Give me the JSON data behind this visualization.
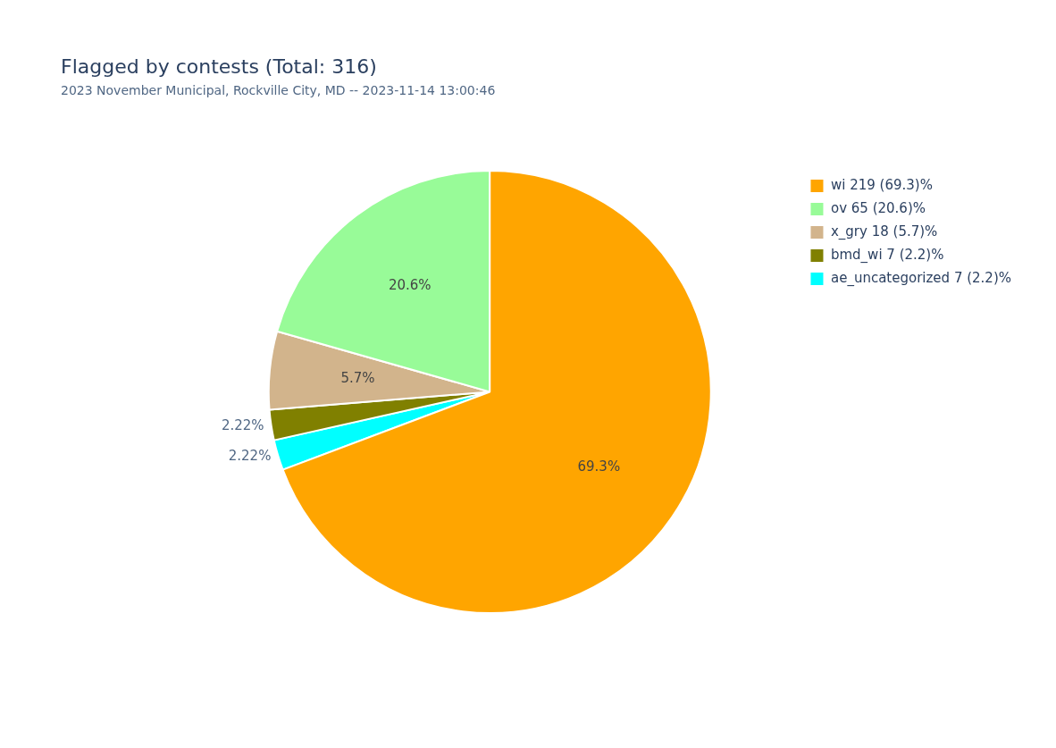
{
  "chart_data": {
    "type": "pie",
    "title": "Flagged by contests (Total: 316)",
    "subtitle": "2023 November Municipal, Rockville City, MD -- 2023-11-14 13:00:46",
    "categories": [
      "wi 219 (69.3)%",
      "ov 65 (20.6)%",
      "x_gry 18 (5.7)%",
      "bmd_wi 7 (2.2)%",
      "ae_uncategorized 7 (2.2)%"
    ],
    "values": [
      69.3,
      20.6,
      5.7,
      2.22,
      2.22
    ],
    "colors": [
      "#ffa500",
      "#98fb98",
      "#d2b48c",
      "#808000",
      "#00ffff"
    ],
    "value_labels": [
      "69.3%",
      "20.6%",
      "5.7%",
      "2.22%",
      "2.22%"
    ],
    "legend": "top right"
  }
}
